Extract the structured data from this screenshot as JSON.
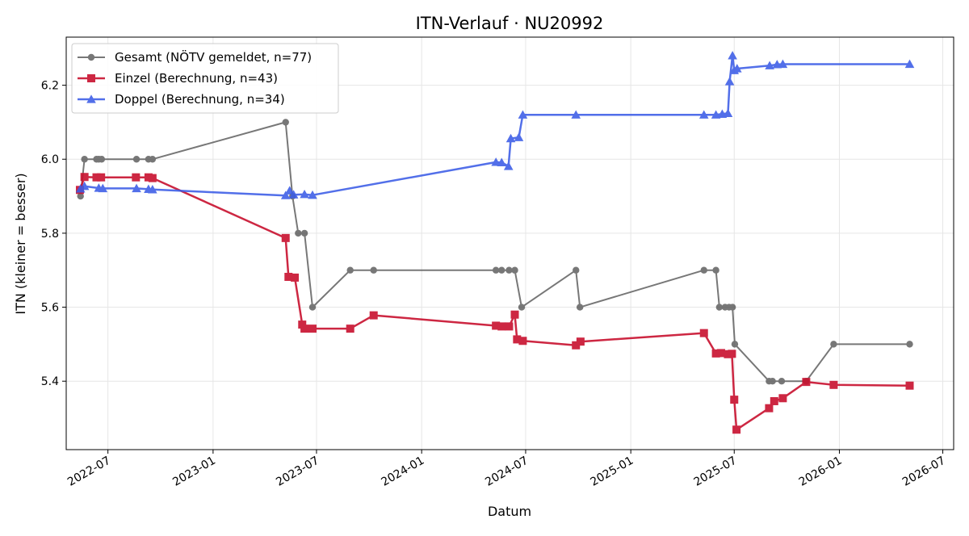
{
  "chart_data": {
    "type": "line",
    "title": "ITN-Verlauf · NU20992",
    "xlabel": "Datum",
    "ylabel": "ITN  (kleiner = besser)",
    "xlim": [
      "2022-04-19",
      "2026-07-20"
    ],
    "ylim": [
      5.215,
      6.33
    ],
    "x_ticks": [
      "2022-07",
      "2023-01",
      "2023-07",
      "2024-01",
      "2024-07",
      "2025-01",
      "2025-07",
      "2026-01",
      "2026-07"
    ],
    "y_ticks": [
      5.4,
      5.6,
      5.8,
      6.0,
      6.2
    ],
    "grid": true,
    "legend_position": "top-left",
    "series": [
      {
        "name": "Gesamt (NÖTV gemeldet, n=77)",
        "color": "#444444",
        "marker": "circle",
        "points": [
          [
            "2022-05-14",
            5.9
          ],
          [
            "2022-05-21",
            6.0
          ],
          [
            "2022-06-11",
            6.0
          ],
          [
            "2022-06-15",
            6.0
          ],
          [
            "2022-06-20",
            6.0
          ],
          [
            "2022-08-20",
            6.0
          ],
          [
            "2022-09-10",
            6.0
          ],
          [
            "2022-09-17",
            6.0
          ],
          [
            "2023-05-08",
            6.1
          ],
          [
            "2023-05-20",
            5.9
          ],
          [
            "2023-05-30",
            5.8
          ],
          [
            "2023-06-10",
            5.8
          ],
          [
            "2023-06-24",
            5.6
          ],
          [
            "2023-08-29",
            5.7
          ],
          [
            "2023-10-09",
            5.7
          ],
          [
            "2024-05-10",
            5.7
          ],
          [
            "2024-05-20",
            5.7
          ],
          [
            "2024-06-02",
            5.7
          ],
          [
            "2024-06-12",
            5.7
          ],
          [
            "2024-06-24",
            5.6
          ],
          [
            "2024-09-27",
            5.7
          ],
          [
            "2024-10-04",
            5.6
          ],
          [
            "2025-05-09",
            5.7
          ],
          [
            "2025-05-30",
            5.7
          ],
          [
            "2025-06-05",
            5.6
          ],
          [
            "2025-06-15",
            5.6
          ],
          [
            "2025-06-22",
            5.6
          ],
          [
            "2025-06-28",
            5.6
          ],
          [
            "2025-07-02",
            5.5
          ],
          [
            "2025-08-31",
            5.4
          ],
          [
            "2025-09-06",
            5.4
          ],
          [
            "2025-09-22",
            5.4
          ],
          [
            "2025-11-04",
            5.4
          ],
          [
            "2025-12-22",
            5.5
          ],
          [
            "2026-05-04",
            5.5
          ]
        ]
      },
      {
        "name": "Einzel (Berechnung, n=43)",
        "color": "#c8102e",
        "marker": "square",
        "points": [
          [
            "2022-05-13",
            5.917
          ],
          [
            "2022-05-21",
            5.952
          ],
          [
            "2022-06-11",
            5.951
          ],
          [
            "2022-06-19",
            5.951
          ],
          [
            "2022-08-19",
            5.951
          ],
          [
            "2022-09-10",
            5.951
          ],
          [
            "2022-09-17",
            5.949
          ],
          [
            "2023-05-08",
            5.787
          ],
          [
            "2023-05-13",
            5.682
          ],
          [
            "2023-05-24",
            5.68
          ],
          [
            "2023-06-06",
            5.553
          ],
          [
            "2023-06-10",
            5.542
          ],
          [
            "2023-06-24",
            5.542
          ],
          [
            "2023-08-29",
            5.542
          ],
          [
            "2023-10-09",
            5.578
          ],
          [
            "2024-05-10",
            5.55
          ],
          [
            "2024-05-20",
            5.548
          ],
          [
            "2024-06-02",
            5.548
          ],
          [
            "2024-06-12",
            5.58
          ],
          [
            "2024-06-16",
            5.513
          ],
          [
            "2024-06-26",
            5.509
          ],
          [
            "2024-09-27",
            5.497
          ],
          [
            "2024-10-05",
            5.507
          ],
          [
            "2025-05-09",
            5.53
          ],
          [
            "2025-05-30",
            5.475
          ],
          [
            "2025-06-08",
            5.476
          ],
          [
            "2025-06-20",
            5.473
          ],
          [
            "2025-06-27",
            5.474
          ],
          [
            "2025-07-01",
            5.35
          ],
          [
            "2025-07-05",
            5.269
          ],
          [
            "2025-08-31",
            5.327
          ],
          [
            "2025-09-09",
            5.346
          ],
          [
            "2025-09-24",
            5.354
          ],
          [
            "2025-11-04",
            5.398
          ],
          [
            "2025-12-22",
            5.39
          ],
          [
            "2026-05-04",
            5.388
          ]
        ]
      },
      {
        "name": "Doppel (Berechnung, n=34)",
        "color": "#3b5ce6",
        "marker": "triangle",
        "points": [
          [
            "2022-05-14",
            5.92
          ],
          [
            "2022-05-21",
            5.927
          ],
          [
            "2022-06-15",
            5.922
          ],
          [
            "2022-06-22",
            5.921
          ],
          [
            "2022-08-20",
            5.921
          ],
          [
            "2022-09-10",
            5.919
          ],
          [
            "2022-09-17",
            5.918
          ],
          [
            "2023-05-08",
            5.902
          ],
          [
            "2023-05-15",
            5.915
          ],
          [
            "2023-05-22",
            5.904
          ],
          [
            "2023-06-10",
            5.905
          ],
          [
            "2023-06-24",
            5.903
          ],
          [
            "2024-05-10",
            5.992
          ],
          [
            "2024-05-20",
            5.991
          ],
          [
            "2024-06-01",
            5.981
          ],
          [
            "2024-06-05",
            6.056
          ],
          [
            "2024-06-19",
            6.059
          ],
          [
            "2024-06-26",
            6.12
          ],
          [
            "2024-09-27",
            6.12
          ],
          [
            "2025-05-09",
            6.12
          ],
          [
            "2025-05-30",
            6.12
          ],
          [
            "2025-06-10",
            6.122
          ],
          [
            "2025-06-20",
            6.124
          ],
          [
            "2025-06-23",
            6.21
          ],
          [
            "2025-06-28",
            6.28
          ],
          [
            "2025-07-01",
            6.24
          ],
          [
            "2025-07-06",
            6.245
          ],
          [
            "2025-09-01",
            6.253
          ],
          [
            "2025-09-14",
            6.256
          ],
          [
            "2025-09-24",
            6.257
          ],
          [
            "2026-05-04",
            6.257
          ]
        ]
      }
    ]
  }
}
